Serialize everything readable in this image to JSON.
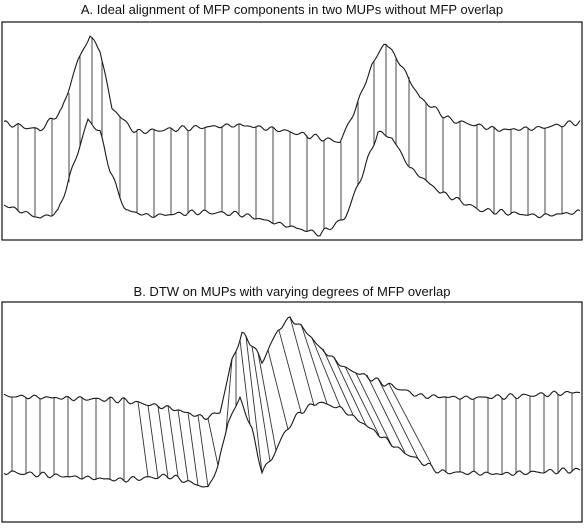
{
  "panels": [
    {
      "id": "A",
      "title": "A. Ideal alignment of MFP components in two MUPs without MFP overlap"
    },
    {
      "id": "B",
      "title": "B. DTW on MUPs with varying degrees of MFP overlap"
    }
  ],
  "colors": {
    "trace": "#1a1a1a",
    "link": "#333333",
    "frame": "#111111",
    "background": "#ffffff"
  }
}
